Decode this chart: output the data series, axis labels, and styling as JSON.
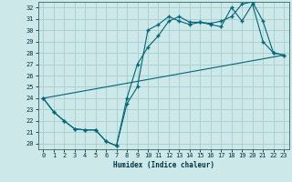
{
  "xlabel": "Humidex (Indice chaleur)",
  "background_color": "#cce8e8",
  "grid_color": "#aacccc",
  "line_color": "#006677",
  "xlim": [
    -0.5,
    23.5
  ],
  "ylim": [
    19.5,
    32.5
  ],
  "xticks": [
    0,
    1,
    2,
    3,
    4,
    5,
    6,
    7,
    8,
    9,
    10,
    11,
    12,
    13,
    14,
    15,
    16,
    17,
    18,
    19,
    20,
    21,
    22,
    23
  ],
  "yticks": [
    20,
    21,
    22,
    23,
    24,
    25,
    26,
    27,
    28,
    29,
    30,
    31,
    32
  ],
  "line1_x": [
    0,
    1,
    2,
    3,
    4,
    5,
    6,
    7,
    8,
    9,
    10,
    11,
    12,
    13,
    14,
    15,
    16,
    17,
    18,
    19,
    20,
    21,
    22,
    23
  ],
  "line1_y": [
    24.0,
    22.8,
    22.0,
    21.3,
    21.2,
    21.2,
    20.2,
    19.8,
    23.5,
    25.0,
    30.0,
    30.5,
    31.2,
    30.8,
    30.5,
    30.7,
    30.5,
    30.3,
    32.0,
    30.8,
    32.3,
    29.0,
    28.0,
    27.8
  ],
  "line2_x": [
    0,
    1,
    2,
    3,
    4,
    5,
    6,
    7,
    8,
    9,
    10,
    11,
    12,
    13,
    14,
    15,
    16,
    17,
    18,
    19,
    20,
    21,
    22,
    23
  ],
  "line2_y": [
    24.0,
    22.8,
    22.0,
    21.3,
    21.2,
    21.2,
    20.2,
    19.8,
    24.0,
    27.0,
    28.5,
    29.5,
    30.8,
    31.2,
    30.7,
    30.7,
    30.6,
    30.8,
    31.2,
    32.3,
    32.5,
    30.8,
    28.0,
    27.8
  ],
  "line3_x": [
    0,
    23
  ],
  "line3_y": [
    24.0,
    27.8
  ]
}
